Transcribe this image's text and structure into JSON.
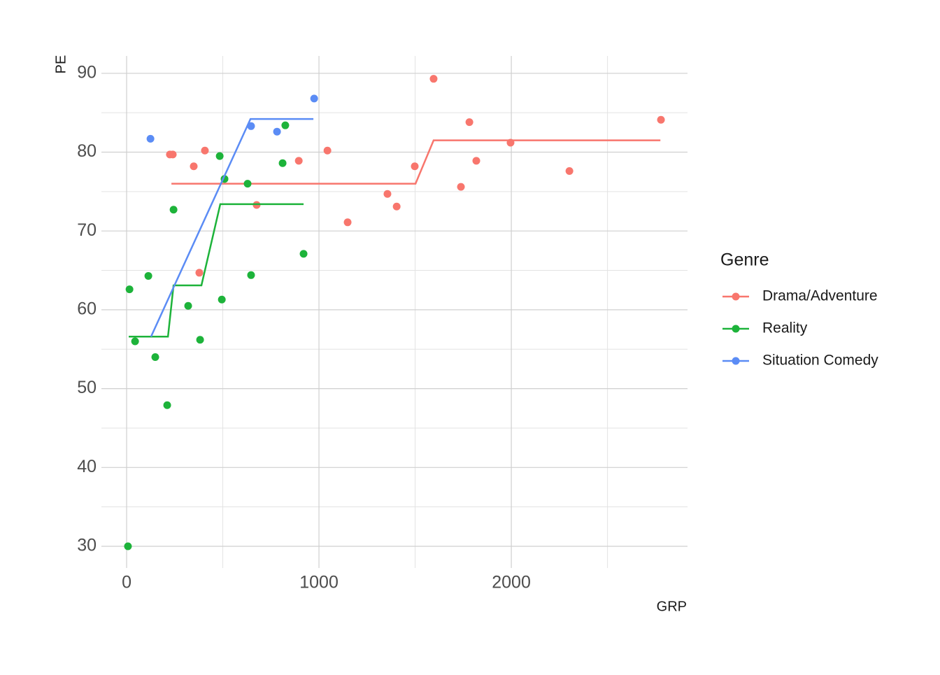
{
  "chart_data": {
    "type": "scatter",
    "x_label": "GRP",
    "y_label": "PE",
    "legend_title": "Genre",
    "legend_position": "right",
    "grid": true,
    "xlim": [
      -131,
      2916
    ],
    "ylim": [
      27.25,
      92.2
    ],
    "xticks": [
      0,
      1000,
      2000
    ],
    "yticks": [
      30,
      40,
      50,
      60,
      70,
      80,
      90
    ],
    "x_minor_grid": [
      500,
      1500,
      2500
    ],
    "y_minor_grid": [
      35,
      45,
      55,
      65,
      75,
      85
    ],
    "series": [
      {
        "name": "Drama/Adventure",
        "color": "#f8766d",
        "x": [
          225,
          240,
          349,
          407,
          378,
          676,
          895,
          1044,
          1149,
          1356,
          1404,
          1498,
          1596,
          1738,
          1782,
          1818,
          1996,
          2302,
          2778
        ],
        "values": [
          79.7,
          79.7,
          78.2,
          80.2,
          64.7,
          73.3,
          78.9,
          80.2,
          71.1,
          74.7,
          73.1,
          78.2,
          89.3,
          75.6,
          83.8,
          78.9,
          81.2,
          77.6,
          84.1
        ],
        "fit": {
          "x": [
            233,
            1502,
            1596,
            2775
          ],
          "values": [
            76.0,
            76.0,
            81.5,
            81.5
          ]
        }
      },
      {
        "name": "Reality",
        "color": "#1db33a",
        "x": [
          7,
          15,
          44,
          113,
          149,
          211,
          244,
          320,
          382,
          484,
          495,
          509,
          629,
          647,
          811,
          825,
          920
        ],
        "values": [
          30.0,
          62.6,
          56.0,
          64.3,
          54.0,
          47.9,
          72.7,
          60.5,
          56.2,
          79.5,
          61.3,
          76.6,
          76.0,
          64.4,
          78.6,
          83.4,
          67.1
        ],
        "fit": {
          "x": [
            11,
            215,
            244,
            389,
            487,
            920
          ],
          "values": [
            56.6,
            56.6,
            63.1,
            63.1,
            73.4,
            73.4
          ]
        }
      },
      {
        "name": "Situation Comedy",
        "color": "#5b8cf5",
        "x": [
          124,
          647,
          782,
          975
        ],
        "values": [
          81.7,
          83.3,
          82.6,
          86.8
        ],
        "fit": {
          "x": [
            127,
            644,
            971
          ],
          "values": [
            56.6,
            84.2,
            84.2
          ]
        }
      }
    ]
  }
}
